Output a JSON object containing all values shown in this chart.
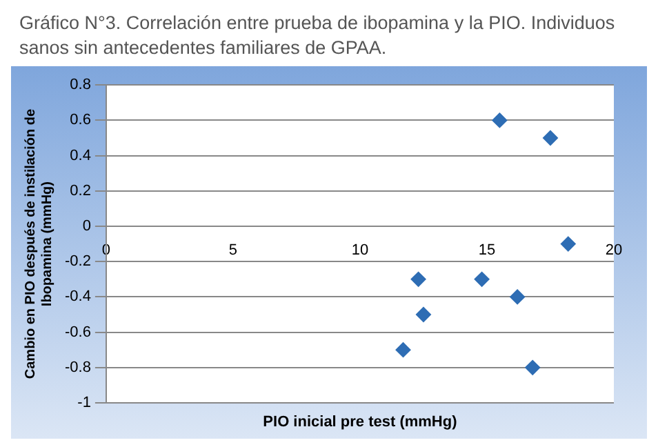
{
  "chart_data": {
    "type": "scatter",
    "title": "Gráfico N°3. Correlación entre prueba de ibopamina y la PIO. Individuos sanos sin antecedentes familiares de GPAA.",
    "xlabel": "PIO inicial pre test (mmHg)",
    "ylabel": "Cambio en PIO después de instilación de Ibopamina (mmHg)",
    "series": [
      {
        "color": "#2e6db4",
        "x": [
          15.5,
          17.5,
          18.2,
          12.3,
          14.8,
          16.2,
          12.5,
          11.7,
          16.8
        ],
        "values": [
          0.6,
          0.5,
          -0.1,
          -0.3,
          -0.3,
          -0.4,
          -0.5,
          -0.7,
          -0.8
        ]
      }
    ],
    "xlim": [
      0,
      20
    ],
    "xticks": [
      0,
      5,
      10,
      15,
      20
    ],
    "ylim": [
      -1,
      0.8
    ],
    "yticks": [
      -1,
      -0.8,
      -0.6,
      -0.4,
      -0.2,
      0,
      0.2,
      0.4,
      0.6,
      0.8
    ],
    "grid": "y",
    "marker": "diamond",
    "legend": false
  }
}
